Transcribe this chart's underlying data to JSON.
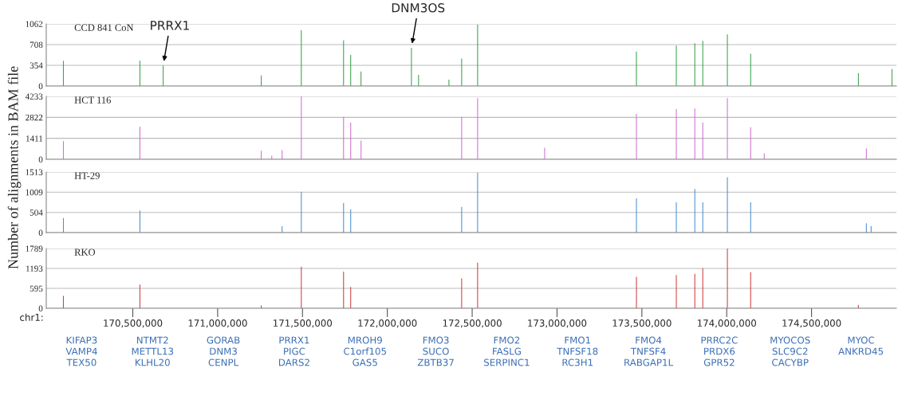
{
  "chart_data": [
    {
      "type": "bar",
      "title": "CCD 841 CoN",
      "ylabel": "Number of alignments in BAM file",
      "xlim": [
        169990000,
        175000000
      ],
      "ylim": [
        0,
        1062
      ],
      "yticks": [
        0,
        354,
        708,
        1062
      ],
      "grid": "y",
      "tick_labels": "y",
      "x": [
        170091000,
        170542000,
        170679000,
        171257000,
        171493000,
        171742000,
        171784000,
        171845000,
        172142000,
        172184000,
        172363000,
        172438000,
        172532000,
        173468000,
        173703000,
        173812000,
        173859000,
        174004000,
        174141000,
        174776000,
        174974000
      ],
      "series": [
        {
          "color": "#3aa34a",
          "values": [
            431,
            431,
            350,
            180,
            952,
            781,
            531,
            250,
            651,
            190,
            110,
            470,
            1050,
            590,
            691,
            731,
            771,
            881,
            551,
            220,
            290
          ]
        }
      ],
      "annotations": [
        {
          "text": "PRRX1",
          "x": 170679000,
          "y": 350
        },
        {
          "text": "DNM3OS",
          "x": 172142000,
          "y": 651
        }
      ]
    },
    {
      "type": "bar",
      "title": "HCT 116",
      "xlim": [
        169990000,
        175000000
      ],
      "ylim": [
        0,
        4233
      ],
      "yticks": [
        0,
        1411,
        2822,
        4233
      ],
      "grid": "y",
      "tick_labels": "y",
      "x": [
        170091000,
        170542000,
        171257000,
        171319000,
        171380000,
        171493000,
        171742000,
        171784000,
        171845000,
        172438000,
        172532000,
        172927000,
        173468000,
        173703000,
        173812000,
        173859000,
        174004000,
        174141000,
        174221000,
        174823000
      ],
      "series": [
        {
          "color": "#d070d0",
          "values": [
            1221,
            2198,
            570,
            244,
            610,
            4233,
            2849,
            2483,
            1262,
            2849,
            4111,
            773,
            3053,
            3378,
            3419,
            2483,
            4111,
            2157,
            407,
            733
          ]
        }
      ]
    },
    {
      "type": "bar",
      "title": "HT-29",
      "xlim": [
        169990000,
        175000000
      ],
      "ylim": [
        0,
        1513
      ],
      "yticks": [
        0,
        504,
        1009,
        1513
      ],
      "grid": "y",
      "tick_labels": "y",
      "x": [
        170091000,
        170542000,
        171380000,
        171493000,
        171742000,
        171784000,
        172438000,
        172532000,
        173468000,
        173703000,
        173812000,
        173859000,
        174004000,
        174141000,
        174823000,
        174851000
      ],
      "series": [
        {
          "color": "#4a90d0",
          "values": [
            364,
            553,
            160,
            1018,
            742,
            582,
            640,
            1498,
            858,
            757,
            1091,
            757,
            1382,
            757,
            233,
            160
          ]
        }
      ]
    },
    {
      "type": "bar",
      "title": "RKO",
      "xlim": [
        169990000,
        175000000
      ],
      "ylim": [
        0,
        1789
      ],
      "yticks": [
        0,
        595,
        1193,
        1789
      ],
      "grid": "y",
      "x": [
        170091000,
        170542000,
        171257000,
        171493000,
        171742000,
        171784000,
        172438000,
        172532000,
        173468000,
        173703000,
        173812000,
        173859000,
        174004000,
        174141000,
        174776000
      ],
      "series": [
        {
          "color": "#d04040",
          "values": [
            371,
            709,
            84,
            1249,
            1097,
            641,
            895,
            1367,
            945,
            996,
            1030,
            1198,
            1789,
            1080,
            101
          ]
        }
      ],
      "xlabel": "chr1:",
      "xticks": [
        {
          "value": 170500000,
          "label": "170,500,000"
        },
        {
          "value": 171000000,
          "label": "171,000,000"
        },
        {
          "value": 171500000,
          "label": "171,500,000"
        },
        {
          "value": 172000000,
          "label": "172,000,000"
        },
        {
          "value": 172500000,
          "label": "172,500,000"
        },
        {
          "value": 173000000,
          "label": "173,000,000"
        },
        {
          "value": 173500000,
          "label": "173,500,000"
        },
        {
          "value": 174000000,
          "label": "174,000,000"
        },
        {
          "value": 174500000,
          "label": "174,500,000"
        }
      ],
      "annotations": [
        "KIFAP3",
        "NTMT2",
        "GORAB",
        "PRRX1",
        "MROH9",
        "FMO3",
        "FMO2",
        "FMO1",
        "FMO4",
        "PRRC2C",
        "MYOCOS",
        "MYOC",
        "VAMP4",
        "METTL13",
        "DNM3",
        "PIGC",
        "C1orf105",
        "SUCO",
        "FASLG",
        "TNFSF18",
        "TNFSF4",
        "PRDX6",
        "SLC9C2",
        "ANKRD45",
        "TEX50",
        "KLHL20",
        "CENPL",
        "DARS2",
        "GAS5",
        "ZBTB37",
        "SERPINC1",
        "RC3H1",
        "RABGAP1L",
        "GPR52",
        "CACYBP"
      ]
    }
  ]
}
